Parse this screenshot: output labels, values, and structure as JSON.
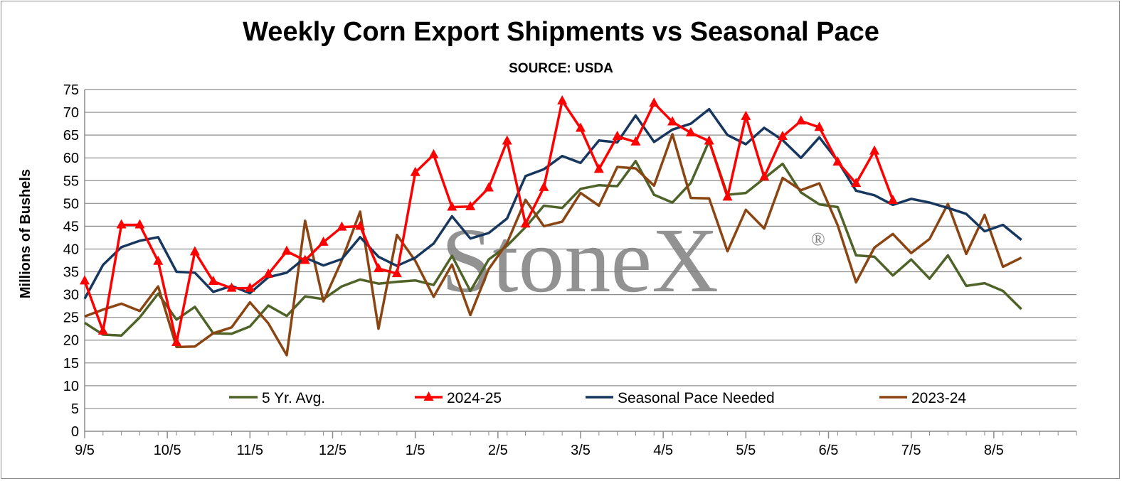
{
  "chart_data": {
    "type": "line",
    "title": "Weekly Corn Export Shipments vs Seasonal Pace",
    "subtitle": "SOURCE: USDA",
    "ylabel": "Millions of Bushels",
    "xlabel": "",
    "ylim": [
      0,
      75
    ],
    "yticks": [
      0,
      5,
      10,
      15,
      20,
      25,
      30,
      35,
      40,
      45,
      50,
      55,
      60,
      65,
      70,
      75
    ],
    "xtick_labels": [
      "9/5",
      "10/5",
      "11/5",
      "12/5",
      "1/5",
      "2/5",
      "3/5",
      "4/5",
      "5/5",
      "6/5",
      "7/5",
      "8/5"
    ],
    "weeks": 55,
    "grid": true,
    "legend_position": "bottom-inside",
    "watermark": "StoneX®",
    "series": [
      {
        "name": "5 Yr. Avg.",
        "color": "#4f6228",
        "marker": "none",
        "values": [
          23.8,
          21.2,
          21.0,
          25.0,
          30.2,
          24.5,
          27.3,
          21.5,
          21.4,
          23.0,
          27.6,
          25.3,
          29.6,
          29.0,
          31.8,
          33.3,
          32.4,
          32.8,
          33.1,
          32.1,
          38.5,
          30.8,
          37.7,
          40.7,
          44.8,
          49.5,
          49.0,
          53.2,
          54.0,
          53.8,
          59.3,
          51.9,
          50.2,
          54.5,
          63.7,
          51.9,
          52.3,
          55.5,
          58.7,
          52.4,
          49.8,
          49.2,
          38.6,
          38.3,
          34.2,
          37.7,
          33.5,
          38.6,
          31.9,
          32.5,
          30.8,
          26.8
        ]
      },
      {
        "name": "2024-25",
        "color": "#ff0000",
        "marker": "triangle",
        "values": [
          33.0,
          22.0,
          45.3,
          45.3,
          37.3,
          19.5,
          39.4,
          32.9,
          31.4,
          31.4,
          34.5,
          39.5,
          37.5,
          41.5,
          44.8,
          45.0,
          35.7,
          34.6,
          56.8,
          60.7,
          49.2,
          49.3,
          53.4,
          63.7,
          45.5,
          53.5,
          72.5,
          66.5,
          57.5,
          64.7,
          63.5,
          72.0,
          67.9,
          65.5,
          63.7,
          51.4,
          69.1,
          55.8,
          64.7,
          68.1,
          66.7,
          59.1,
          54.4,
          61.5,
          50.7
        ]
      },
      {
        "name": "Seasonal Pace Needed",
        "color": "#17375e",
        "marker": "none",
        "values": [
          29.1,
          36.5,
          40.4,
          41.8,
          42.6,
          35.0,
          34.8,
          30.6,
          31.9,
          30.3,
          33.8,
          34.8,
          38.1,
          36.4,
          37.8,
          42.6,
          38.3,
          36.3,
          38.1,
          41.2,
          47.2,
          42.3,
          43.5,
          46.7,
          56.0,
          57.5,
          60.4,
          58.9,
          63.8,
          63.4,
          69.3,
          63.5,
          66.2,
          67.5,
          70.7,
          65.0,
          63.0,
          66.6,
          63.9,
          60.0,
          64.5,
          59.3,
          52.8,
          51.8,
          49.7,
          51.0,
          50.2,
          49.0,
          47.7,
          43.9,
          45.3,
          42.0
        ]
      },
      {
        "name": "2023-24",
        "color": "#8b4513",
        "marker": "none",
        "values": [
          25.2,
          26.7,
          28.0,
          26.4,
          31.8,
          18.5,
          18.6,
          21.5,
          22.8,
          28.3,
          23.7,
          16.7,
          46.2,
          28.5,
          37.5,
          48.2,
          22.5,
          43.1,
          37.4,
          29.5,
          36.6,
          25.5,
          35.6,
          41.3,
          50.8,
          45.0,
          46.0,
          52.3,
          49.5,
          58.0,
          57.7,
          53.9,
          65.2,
          51.2,
          51.1,
          39.5,
          48.6,
          44.5,
          55.6,
          52.9,
          54.4,
          45.2,
          32.7,
          40.3,
          43.3,
          39.1,
          42.2,
          49.9,
          38.9,
          47.5,
          36.1,
          38.1
        ]
      }
    ]
  }
}
